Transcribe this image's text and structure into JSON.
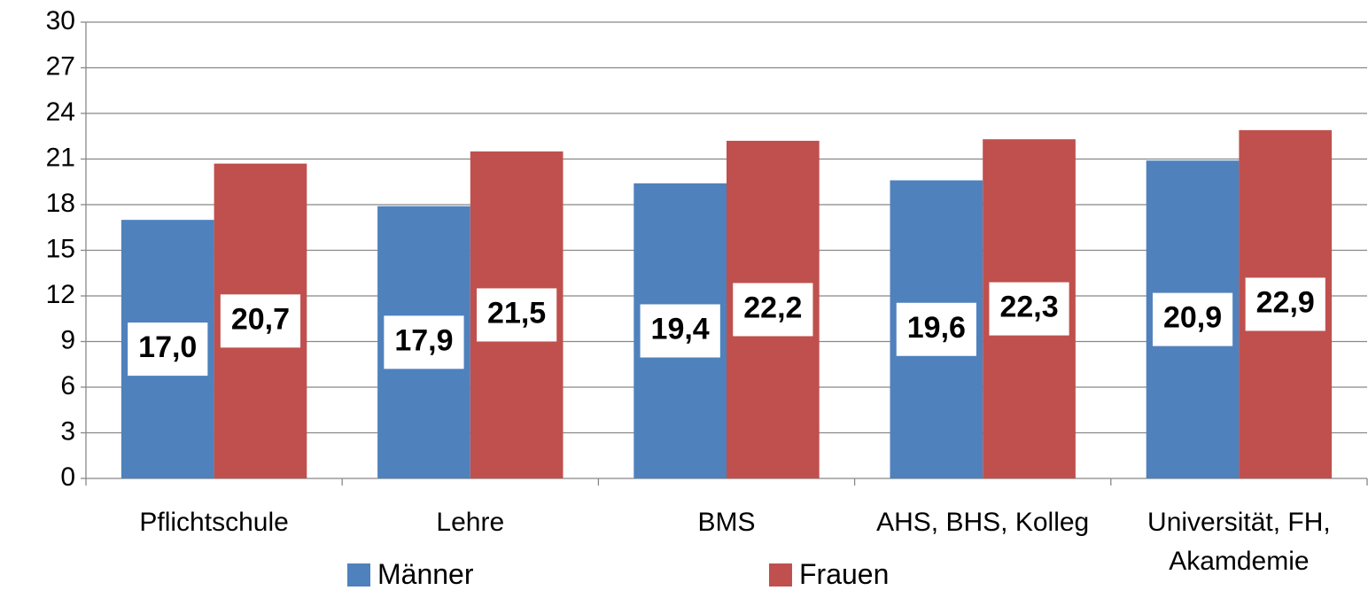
{
  "chart_data": {
    "type": "bar",
    "categories": [
      "Pflichtschule",
      "Lehre",
      "BMS",
      "AHS, BHS, Kolleg",
      "Universität, FH, Akamdemie"
    ],
    "series": [
      {
        "name": "Männer",
        "color": "#4f81bd",
        "values": [
          17.0,
          17.9,
          19.4,
          19.6,
          20.9
        ],
        "value_labels": [
          "17,0",
          "17,9",
          "19,4",
          "19,6",
          "20,9"
        ]
      },
      {
        "name": "Frauen",
        "color": "#c0504d",
        "values": [
          20.7,
          21.5,
          22.2,
          22.3,
          22.9
        ],
        "value_labels": [
          "20,7",
          "21,5",
          "22,2",
          "22,3",
          "22,9"
        ]
      }
    ],
    "ylim": [
      0,
      30
    ],
    "yticks": [
      0,
      3,
      6,
      9,
      12,
      15,
      18,
      21,
      24,
      27,
      30
    ],
    "grid": true,
    "legend": "bottom"
  }
}
